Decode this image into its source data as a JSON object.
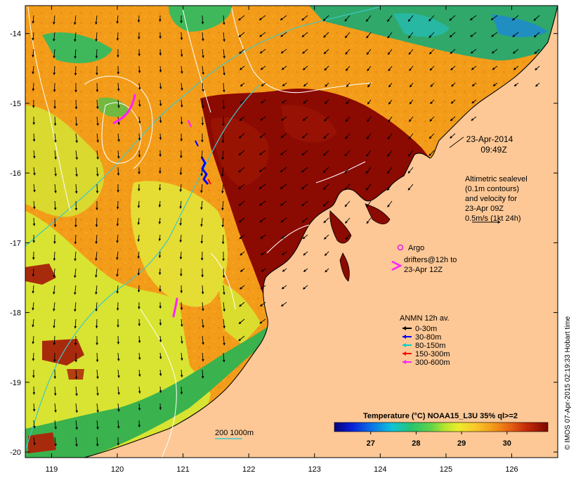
{
  "map": {
    "lon_range": [
      118.6,
      126.7
    ],
    "lat_range": [
      -20.08,
      -13.6
    ],
    "lon_ticks": [
      "119",
      "120",
      "121",
      "122",
      "123",
      "124",
      "125",
      "126"
    ],
    "lat_ticks": [
      "-14",
      "-15",
      "-16",
      "-17",
      "-18",
      "-19",
      "-20"
    ],
    "colors": {
      "land": "#fdc896",
      "sea_warm": "#f39c19",
      "sea_hot": "#8b0a02",
      "sea_cool": "#2fa86a",
      "sea_yellow": "#d8e431",
      "coast": "#000000",
      "contour": "#ffffff",
      "isobath": "#3fc8c8"
    }
  },
  "timestamp": {
    "date": "23-Apr-2014",
    "time": "09:49Z"
  },
  "legend_velocity": {
    "lines": [
      "Altimetric sealevel",
      "(0.1m contours)",
      "and velocity for",
      "23-Apr 09Z",
      "0.5m/s (1kt 24h)"
    ]
  },
  "legend_floats": {
    "argo": "Argo",
    "drifters_1": "drifters@12h to",
    "drifters_2": "23-Apr 12Z",
    "argo_color": "#e020e0",
    "drifter_color": "#ff20ff"
  },
  "legend_anmn": {
    "title": "ANMN 12h av.",
    "items": [
      {
        "label": "0-30m",
        "color": "#000000"
      },
      {
        "label": "30-80m",
        "color": "#0000ff"
      },
      {
        "label": "80-150m",
        "color": "#00d0d0"
      },
      {
        "label": "150-300m",
        "color": "#ff0000"
      },
      {
        "label": "300-600m",
        "color": "#ff20ff"
      }
    ]
  },
  "colorbar": {
    "title": "Temperature (°C) NOAA15_L3U 35% ql>=2",
    "ticks": [
      "27",
      "28",
      "29",
      "30"
    ],
    "tick_values": [
      27,
      28,
      29,
      30
    ],
    "range": [
      26.2,
      30.9
    ]
  },
  "isobath_legend": "200  1000m",
  "credit": "© IMOS 07-Apr-2015 02:19:33 Hobart time"
}
